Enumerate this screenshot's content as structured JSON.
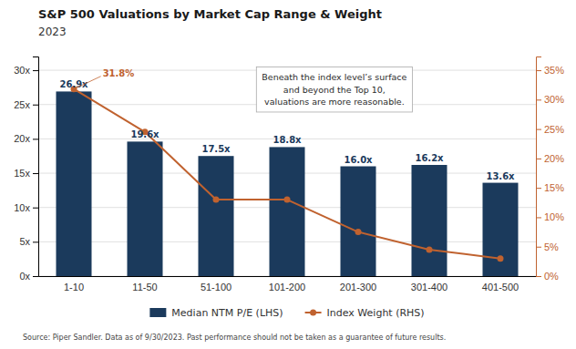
{
  "chart_data": {
    "type": "bar",
    "title": "S&P 500 Valuations by Market Cap Range & Weight",
    "subtitle": "2023",
    "categories": [
      "1-10",
      "11-50",
      "51-100",
      "101-200",
      "201-300",
      "301-400",
      "401-500"
    ],
    "series": [
      {
        "name": "Median NTM P/E (LHS)",
        "type": "bar",
        "color": "#1b3a5c",
        "values": [
          26.9,
          19.6,
          17.5,
          18.8,
          16.0,
          16.2,
          13.6
        ],
        "value_labels": [
          "26.9x",
          "19.6x",
          "17.5x",
          "18.8x",
          "16.0x",
          "16.2x",
          "13.6x"
        ]
      },
      {
        "name": "Index Weight (RHS)",
        "type": "line",
        "axis": "y2",
        "color": "#c0622f",
        "marker": "circle",
        "values": [
          31.8,
          24.5,
          13.0,
          13.0,
          7.5,
          4.5,
          3.0
        ],
        "value_labels": [
          "31.8%",
          null,
          null,
          null,
          null,
          null,
          null
        ]
      }
    ],
    "ylim": [
      0,
      32
    ],
    "yticks": [
      {
        "value": 0,
        "label": "0x"
      },
      {
        "value": 5,
        "label": "5x"
      },
      {
        "value": 10,
        "label": "10x"
      },
      {
        "value": 15,
        "label": "15x"
      },
      {
        "value": 20,
        "label": "20x"
      },
      {
        "value": 25,
        "label": "25x"
      },
      {
        "value": 30,
        "label": "30x"
      }
    ],
    "y2lim": [
      0,
      37.333333333333336
    ],
    "y2ticks": [
      {
        "value": 0,
        "label": "0%"
      },
      {
        "value": 5,
        "label": "5%"
      },
      {
        "value": 10,
        "label": "10%"
      },
      {
        "value": 15,
        "label": "15%"
      },
      {
        "value": 20,
        "label": "20%"
      },
      {
        "value": 25,
        "label": "25%"
      },
      {
        "value": 30,
        "label": "30%"
      },
      {
        "value": 35,
        "label": "35%"
      }
    ],
    "grid": true,
    "legend": "bottom",
    "data_labels": true,
    "annotation": "Beneath the index level’s surface\nand beyond the Top 10,\nvaluations are more reasonable.",
    "source": "Source: Piper Sandler. Data as of 9/30/2023. Past performance should not be taken as a guarantee of future results."
  }
}
